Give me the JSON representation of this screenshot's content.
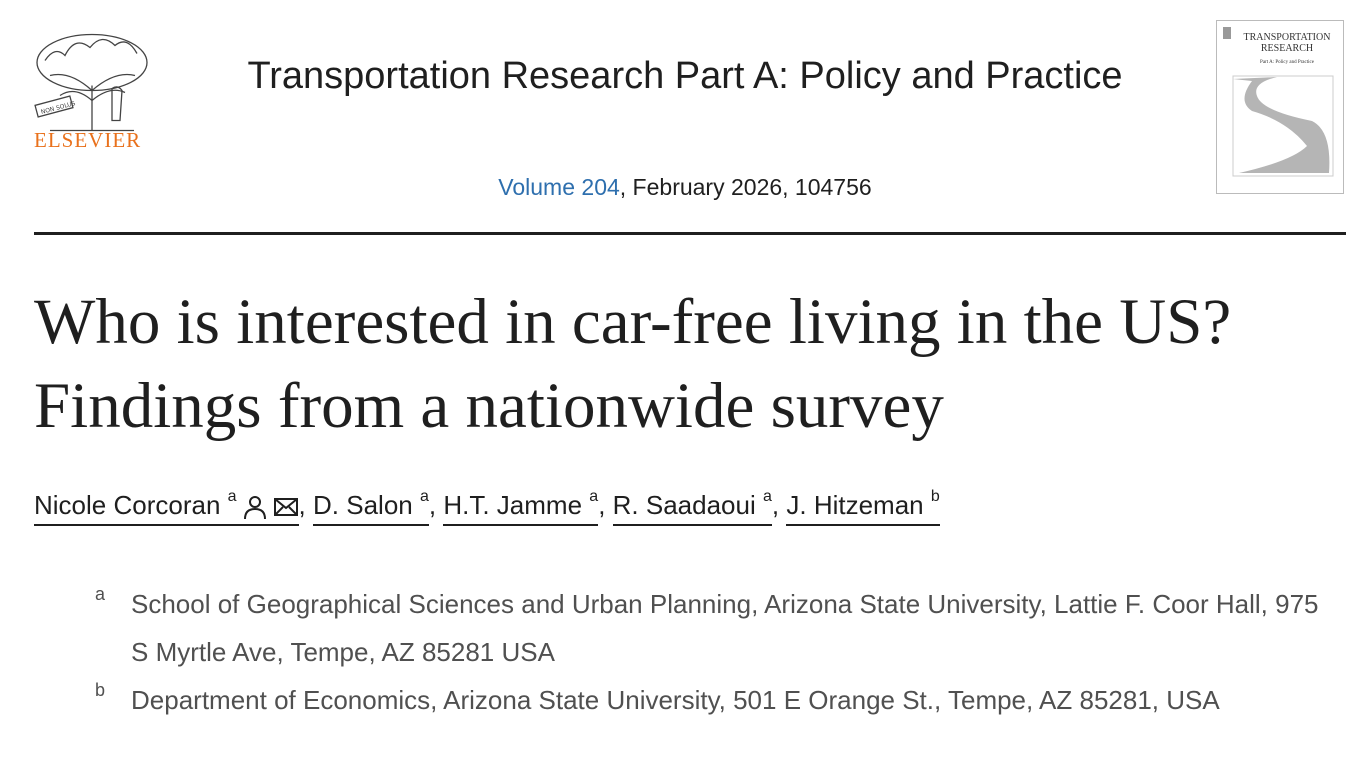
{
  "publisher": {
    "logo_text": "ELSEVIER",
    "logo_motto": "NON SOLUS",
    "brand_color": "#e9711c"
  },
  "journal": {
    "title": "Transportation Research Part A: Policy and Practice",
    "volume_link": "Volume 204",
    "issue_rest": ", February 2026, 104756",
    "link_color": "#2e6fae",
    "cover": {
      "line1": "TRANSPORTATION",
      "line2": "RESEARCH",
      "line3": "Part A: Policy and Practice"
    }
  },
  "article": {
    "title": "Who is interested in car-free living in the US? Findings from a nationwide survey",
    "authors": [
      {
        "name": "Nicole Corcoran",
        "aff": "a",
        "icons": [
          "person-icon",
          "envelope-icon"
        ]
      },
      {
        "name": "D. Salon",
        "aff": "a"
      },
      {
        "name": "H.T. Jamme",
        "aff": "a"
      },
      {
        "name": "R. Saadaoui",
        "aff": "a"
      },
      {
        "name": "J. Hitzeman",
        "aff": "b"
      }
    ],
    "separator": ",",
    "affiliations": [
      {
        "label": "a",
        "text": "School of Geographical Sciences and Urban Planning, Arizona State University, Lattie F. Coor Hall, 975 S Myrtle Ave, Tempe, AZ 85281 USA"
      },
      {
        "label": "b",
        "text": "Department of Economics, Arizona State University, 501 E Orange St., Tempe, AZ 85281, USA"
      }
    ]
  }
}
